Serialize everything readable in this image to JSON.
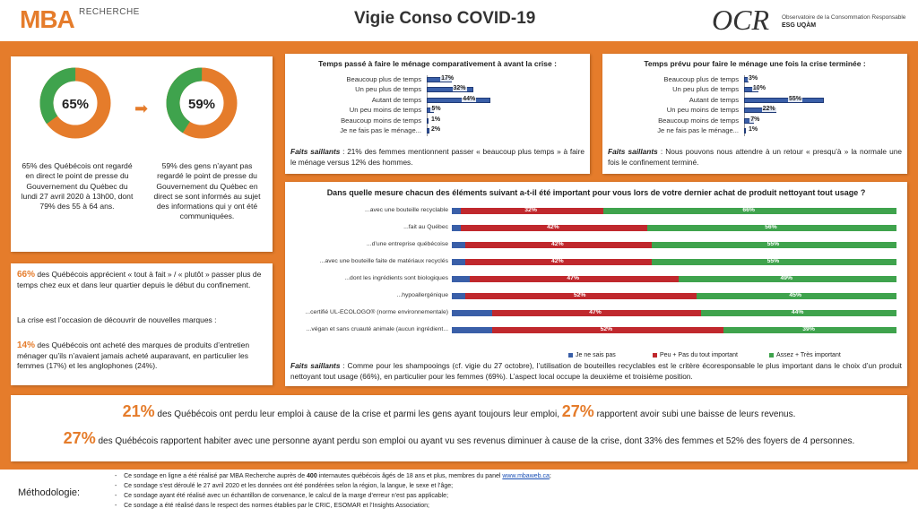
{
  "header": {
    "logo_mba": "MBA",
    "logo_recherche": "RECHERCHE",
    "title": "Vigie Conso COVID-19",
    "logo_ocr": "OCR",
    "ocr_desc_1": "Observatoire de la Consommation Responsable",
    "ocr_desc_2": "ESG UQÀM"
  },
  "colors": {
    "orange": "#e57c2b",
    "blue": "#3a5fa8",
    "red": "#c0282d",
    "green": "#3fa34d"
  },
  "donuts": {
    "left": {
      "value": "65%",
      "fraction": 0.65,
      "text": "65% des Québécois ont regardé en direct le point de presse du Gouvernement du Québec du lundi 27 avril 2020 à 13h00, dont 79% des 55 à 64 ans."
    },
    "right": {
      "value": "59%",
      "fraction": 0.59,
      "text": "59% des gens n’ayant pas regardé le point de presse du Gouvernement du Québec en direct se sont informés au sujet des informations qui y ont été communiquées."
    },
    "arrow_icon": "arrow-right-icon"
  },
  "left_facts": {
    "p1_pct": "66%",
    "p1_text": " des Québécois apprécient « tout à fait » / « plutôt » passer plus de temps chez eux et dans leur quartier depuis le début du confinement.",
    "p2_text": "La crise est l’occasion de découvrir de nouvelles marques :",
    "p3_pct": "14%",
    "p3_text": " des Québécois ont acheté des marques de produits d’entretien ménager qu’ils n’avaient jamais acheté auparavant, en particulier les femmes (17%) et les anglophones (24%)."
  },
  "menage_chart": {
    "title": "Temps passé à faire le ménage comparativement à avant la crise :",
    "faits_label": "Faits saillants",
    "faits_text": " : 21% des femmes mentionnent passer « beaucoup plus temps » à faire le ménage versus 12% des hommes."
  },
  "apres_chart": {
    "title": "Temps prévu pour faire le ménage une fois la crise terminée :",
    "faits_label": "Faits saillants",
    "faits_text": " : Nous pouvons nous attendre à un retour « presqu’à » la normale une fois le confinement terminé."
  },
  "nettoyant_chart": {
    "title": "Dans quelle mesure chacun des éléments suivant a-t-il été important pour vous lors de votre dernier achat de produit nettoyant tout usage ?",
    "faits_label": "Faits saillants",
    "faits_text": " : Comme pour les shampooings (cf. vigie du 27 octobre), l’utilisation de bouteilles recyclables est le critère écoresponsable le plus important dans le choix d’un produit nettoyant tout usage (66%), en particulier pour les femmes (69%). L’aspect local occupe la deuxième et troisième position."
  },
  "chart_data": [
    {
      "type": "bar",
      "orientation": "horizontal",
      "title": "Temps passé à faire le ménage comparativement à avant la crise :",
      "categories": [
        "Beaucoup plus de temps",
        "Un peu plus de temps",
        "Autant de temps",
        "Un peu moins de temps",
        "Beaucoup moins de temps",
        "Je ne fais pas le ménage..."
      ],
      "values": [
        17,
        32,
        44,
        5,
        1,
        2
      ],
      "value_labels": [
        "17%",
        "32%",
        "44%",
        "5%",
        "1%",
        "2%"
      ],
      "xlim": [
        0,
        100
      ]
    },
    {
      "type": "bar",
      "orientation": "horizontal",
      "title": "Temps prévu pour faire le ménage une fois la crise terminée :",
      "categories": [
        "Beaucoup plus de temps",
        "Un peu plus de temps",
        "Autant de temps",
        "Un peu moins de temps",
        "Beaucoup moins de temps",
        "Je ne fais pas le ménage..."
      ],
      "values": [
        3,
        10,
        55,
        22,
        7,
        1
      ],
      "value_labels": [
        "3%",
        "10%",
        "55%",
        "22%",
        "7%",
        "1%"
      ],
      "xlim": [
        0,
        100
      ]
    },
    {
      "type": "bar",
      "orientation": "horizontal",
      "stacked": true,
      "title": "Dans quelle mesure chacun des éléments suivant a-t-il été important pour vous lors de votre dernier achat de produit nettoyant tout usage ?",
      "categories": [
        "...avec une bouteille recyclable",
        "...fait au Québec",
        "...d’une entreprise québécoise",
        "...avec une bouteille faite de matériaux recyclés",
        "...dont les ingrédients sont biologiques",
        "...hypoallergénique",
        "...certifié UL-ECOLOGO® (norme environnementale)",
        "...végan et sans cruauté animale (aucun ingrédient..."
      ],
      "series": [
        {
          "name": "Je ne sais pas",
          "values": [
            2,
            2,
            3,
            3,
            4,
            3,
            9,
            9
          ]
        },
        {
          "name": "Peu + Pas du tout important",
          "values": [
            32,
            42,
            42,
            42,
            47,
            52,
            47,
            52
          ]
        },
        {
          "name": "Assez + Très important",
          "values": [
            66,
            56,
            55,
            55,
            49,
            45,
            44,
            39
          ]
        }
      ],
      "data_labels": [
        [
          "32%",
          "66%"
        ],
        [
          "42%",
          "56%"
        ],
        [
          "42%",
          "55%"
        ],
        [
          "42%",
          "55%"
        ],
        [
          "47%",
          "49%"
        ],
        [
          "52%",
          "45%"
        ],
        [
          "47%",
          "44%"
        ],
        [
          "52%",
          "39%"
        ]
      ],
      "legend": "bottom"
    }
  ],
  "bottom_stats": {
    "l1_pct_a": "21%",
    "l1_text_a": "des Québécois ont perdu leur emploi à cause de la crise et parmi les gens ayant toujours leur emploi,",
    "l1_pct_b": "27%",
    "l1_text_b": "rapportent avoir subi une baisse de leurs revenus.",
    "l2_pct": "27%",
    "l2_text": "des Québécois rapportent habiter avec une personne ayant perdu son emploi ou ayant vu ses revenus diminuer à cause de la crise, dont 33% des femmes et 52% des foyers de 4 personnes."
  },
  "methodology": {
    "label": "Méthodologie:",
    "line1_a": "Ce sondage en ligne a été réalisé par MBA Recherche auprès de ",
    "line1_b": "400",
    "line1_c": " internautes québécois âgés de 18 ans et plus, membres du panel ",
    "line1_link": "www.mbaweb.ca",
    "line1_d": ";",
    "line2": "Ce sondage s’est déroulé le 27 avril 2020 et les données ont été pondérées selon la région, la langue, le sexe et l’âge;",
    "line3": "Ce sondage ayant été réalisé avec un échantillon de convenance, le calcul de la marge d’erreur n’est pas applicable;",
    "line4": "Ce sondage a été réalisé dans le respect des normes établies par le CRIC, ESOMAR et l’Insights Association;",
    "bullet": "-"
  }
}
